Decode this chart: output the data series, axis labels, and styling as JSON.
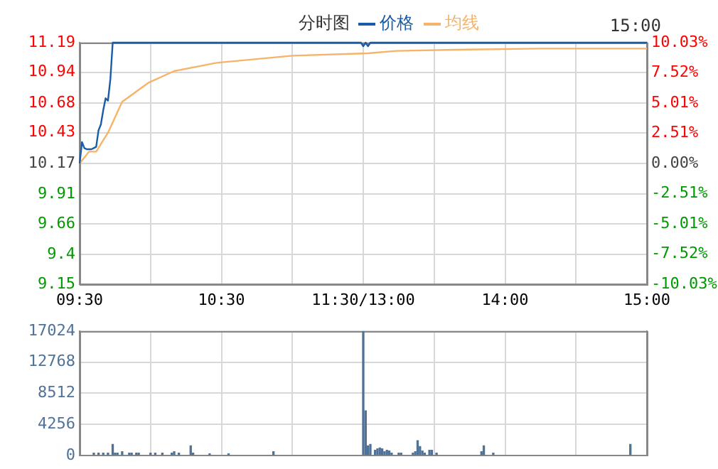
{
  "chart_data": [
    {
      "type": "line",
      "title": "分时图",
      "legend": "top",
      "grid": true,
      "marker": "none",
      "annotations": [
        "15:00"
      ],
      "categories": [
        "09:30",
        null,
        null,
        null,
        null,
        null,
        null,
        null,
        null,
        null,
        null,
        null,
        null,
        null,
        null,
        null,
        null,
        null,
        null,
        null,
        null,
        null,
        null,
        null,
        null,
        null,
        null,
        null,
        null,
        null,
        null,
        null,
        null,
        null,
        null,
        null,
        null,
        null,
        null,
        null,
        null,
        null,
        null,
        null,
        null,
        null,
        null,
        null,
        null,
        null,
        null,
        null,
        null,
        null,
        null,
        null,
        null,
        null,
        null,
        null,
        "10:30",
        null,
        null,
        null,
        null,
        null,
        null,
        null,
        null,
        null,
        null,
        null,
        null,
        null,
        null,
        null,
        null,
        null,
        null,
        null,
        null,
        null,
        null,
        null,
        null,
        null,
        null,
        null,
        null,
        null,
        null,
        null,
        null,
        null,
        null,
        null,
        null,
        null,
        null,
        null,
        null,
        null,
        null,
        null,
        null,
        null,
        null,
        null,
        null,
        null,
        null,
        null,
        null,
        null,
        null,
        null,
        null,
        null,
        null,
        null,
        "11:30/13:00",
        null,
        null,
        null,
        null,
        null,
        null,
        null,
        null,
        null,
        null,
        null,
        null,
        null,
        null,
        null,
        null,
        null,
        null,
        null,
        null,
        null,
        null,
        null,
        null,
        null,
        null,
        null,
        null,
        null,
        null,
        null,
        null,
        null,
        null,
        null,
        null,
        null,
        null,
        null,
        null,
        null,
        null,
        null,
        null,
        null,
        null,
        null,
        null,
        null,
        null,
        null,
        null,
        null,
        null,
        null,
        null,
        null,
        null,
        null,
        "14:00",
        null,
        null,
        null,
        null,
        null,
        null,
        null,
        null,
        null,
        null,
        null,
        null,
        null,
        null,
        null,
        null,
        null,
        null,
        null,
        null,
        null,
        null,
        null,
        null,
        null,
        null,
        null,
        null,
        null,
        null,
        null,
        null,
        null,
        null,
        null,
        null,
        null,
        null,
        null,
        null,
        null,
        null,
        null,
        null,
        null,
        null,
        null,
        null,
        null,
        null,
        null,
        null,
        null,
        null,
        null,
        null,
        null,
        null,
        null,
        "15:00"
      ],
      "ylim": [
        9.15,
        11.19
      ],
      "yticks": [
        9.15,
        9.4,
        9.66,
        9.91,
        10.17,
        10.43,
        10.68,
        10.94,
        11.19
      ],
      "y2lim": [
        -10.03,
        10.03
      ],
      "y2ticks": [
        {
          "value": -10.03,
          "label": "-10.03%"
        },
        {
          "value": -7.52,
          "label": "-7.52%"
        },
        {
          "value": -5.01,
          "label": "-5.01%"
        },
        {
          "value": -2.51,
          "label": "-2.51%"
        },
        {
          "value": 0,
          "label": "0.00%"
        },
        {
          "value": 2.51,
          "label": "2.51%"
        },
        {
          "value": 5.01,
          "label": "5.01%"
        },
        {
          "value": 7.52,
          "label": "7.52%"
        },
        {
          "value": 10.03,
          "label": "10.03%"
        }
      ],
      "series": [
        {
          "name": "价格",
          "color": "#1a5ca8",
          "values": [
            10.17,
            10.35,
            10.3,
            10.29,
            10.29,
            10.29,
            10.3,
            10.31,
            10.45,
            10.5,
            10.62,
            10.72,
            10.7,
            10.88,
            11.19,
            null,
            null,
            null,
            null,
            null,
            null,
            null,
            null,
            null,
            null,
            null,
            null,
            null,
            null,
            null,
            null,
            null,
            null,
            null,
            null,
            null,
            null,
            null,
            null,
            null,
            null,
            null,
            null,
            null,
            null,
            null,
            null,
            null,
            null,
            null,
            null,
            null,
            null,
            null,
            null,
            null,
            null,
            null,
            null,
            null,
            null,
            null,
            null,
            null,
            null,
            null,
            null,
            null,
            null,
            null,
            null,
            null,
            null,
            null,
            null,
            null,
            null,
            null,
            null,
            null,
            null,
            null,
            null,
            null,
            null,
            null,
            null,
            null,
            null,
            null,
            null,
            null,
            null,
            null,
            null,
            null,
            null,
            null,
            null,
            null,
            null,
            null,
            null,
            null,
            null,
            null,
            null,
            null,
            null,
            null,
            null,
            null,
            null,
            null,
            null,
            null,
            null,
            null,
            null,
            11.19,
            11.16,
            11.19,
            11.16,
            11.19,
            null,
            null,
            null,
            null,
            null,
            null,
            null,
            null,
            null,
            null,
            null,
            null,
            null,
            null,
            null,
            null,
            null,
            null,
            null,
            null,
            null,
            null,
            null,
            null,
            null,
            null,
            null,
            null,
            null,
            null,
            null,
            null,
            null,
            null,
            null,
            null,
            null,
            null,
            null,
            null,
            null,
            null,
            null,
            null,
            null,
            null,
            null,
            null,
            null,
            null,
            null,
            null,
            null,
            null,
            null,
            null,
            null,
            null,
            null,
            null,
            null,
            null,
            null,
            null,
            null,
            null,
            null,
            null,
            null,
            null,
            null,
            null,
            null,
            null,
            null,
            null,
            null,
            null,
            null,
            null,
            null,
            null,
            null,
            null,
            null,
            null,
            null,
            null,
            null,
            null,
            null,
            null,
            null,
            null,
            null,
            null,
            null,
            null,
            null,
            null,
            null,
            null,
            null,
            null,
            null,
            null,
            null,
            null,
            null,
            null,
            null,
            null,
            null,
            null,
            null,
            null,
            11.19
          ]
        },
        {
          "name": "均线",
          "color": "#f5b46a",
          "values": [
            10.17,
            null,
            10.22,
            null,
            10.27,
            null,
            null,
            10.27,
            null,
            null,
            null,
            null,
            10.43,
            null,
            null,
            null,
            null,
            null,
            10.69,
            null,
            null,
            null,
            null,
            null,
            null,
            null,
            null,
            null,
            null,
            10.85,
            null,
            null,
            null,
            null,
            null,
            null,
            null,
            null,
            null,
            null,
            10.95,
            null,
            null,
            null,
            null,
            null,
            null,
            null,
            null,
            null,
            null,
            null,
            null,
            null,
            null,
            null,
            null,
            null,
            11.02,
            null,
            null,
            null,
            null,
            null,
            null,
            null,
            null,
            null,
            null,
            null,
            null,
            null,
            null,
            null,
            11.05,
            null,
            null,
            null,
            null,
            null,
            null,
            null,
            null,
            null,
            null,
            null,
            null,
            null,
            null,
            null,
            11.08,
            null,
            null,
            null,
            null,
            null,
            null,
            null,
            null,
            null,
            null,
            null,
            null,
            null,
            null,
            null,
            null,
            null,
            null,
            null,
            null,
            null,
            null,
            null,
            null,
            null,
            null,
            null,
            null,
            null,
            null,
            null,
            11.1,
            null,
            null,
            null,
            null,
            null,
            null,
            null,
            null,
            null,
            null,
            null,
            11.12,
            null,
            null,
            null,
            null,
            null,
            null,
            null,
            null,
            null,
            null,
            null,
            null,
            null,
            null,
            null,
            null,
            null,
            null,
            null,
            null,
            null,
            null,
            null,
            null,
            11.13,
            null,
            null,
            null,
            null,
            null,
            null,
            null,
            null,
            null,
            null,
            null,
            null,
            null,
            null,
            null,
            null,
            null,
            null,
            null,
            null,
            null,
            null,
            null,
            null,
            null,
            null,
            null,
            null,
            null,
            null,
            null,
            null,
            null,
            null,
            null,
            11.14,
            null,
            null,
            null,
            null,
            null,
            null,
            null,
            null,
            null,
            null,
            null,
            null,
            null,
            null,
            null,
            null,
            null,
            null,
            null,
            null,
            null,
            null,
            null,
            null,
            null,
            null,
            null,
            null,
            null,
            null,
            null,
            null,
            null,
            null,
            null,
            null,
            null,
            null,
            null,
            null,
            null,
            null,
            null,
            null,
            11.14
          ]
        }
      ]
    },
    {
      "type": "bar",
      "grid": true,
      "tick_labels": "y",
      "categories": [
        null,
        null,
        null,
        null,
        null,
        null,
        null,
        null,
        null,
        null,
        null,
        null,
        null,
        null,
        null,
        null,
        null,
        null,
        null,
        null,
        null,
        null,
        null,
        null,
        null,
        null,
        null,
        null,
        null,
        null,
        null,
        null,
        null,
        null,
        null,
        null,
        null,
        null,
        null,
        null,
        null,
        null,
        null,
        null,
        null,
        null,
        null,
        null,
        null,
        null,
        null,
        null,
        null,
        null,
        null,
        null,
        null,
        null,
        null,
        null,
        null,
        null,
        null,
        null,
        null,
        null,
        null,
        null,
        null,
        null,
        null,
        null,
        null,
        null,
        null,
        null,
        null,
        null,
        null,
        null,
        null,
        null,
        null,
        null,
        null,
        null,
        null,
        null,
        null,
        null,
        null,
        null,
        null,
        null,
        null,
        null,
        null,
        null,
        null,
        null,
        null,
        null,
        null,
        null,
        null,
        null,
        null,
        null,
        null,
        null,
        null,
        null,
        null,
        null,
        null,
        null,
        null,
        null,
        null,
        null,
        null,
        null,
        null,
        null,
        null,
        null,
        null,
        null,
        null,
        null,
        null,
        null,
        null,
        null,
        null,
        null,
        null,
        null,
        null,
        null,
        null,
        null,
        null,
        null,
        null,
        null,
        null,
        null,
        null,
        null,
        null,
        null,
        null,
        null,
        null,
        null,
        null,
        null,
        null,
        null,
        null,
        null,
        null,
        null,
        null,
        null,
        null,
        null,
        null,
        null,
        null,
        null,
        null,
        null,
        null,
        null,
        null,
        null,
        null,
        null,
        null,
        null,
        null,
        null,
        null,
        null,
        null,
        null,
        null,
        null,
        null,
        null,
        null,
        null,
        null,
        null,
        null,
        null,
        null,
        null,
        null,
        null,
        null,
        null,
        null,
        null,
        null,
        null,
        null,
        null,
        null,
        null,
        null,
        null,
        null,
        null,
        null,
        null,
        null,
        null,
        null,
        null,
        null,
        null,
        null,
        null,
        null,
        null,
        null,
        null,
        null,
        null,
        null,
        null,
        null,
        null,
        null,
        null,
        null,
        null,
        null
      ],
      "ylim": [
        0,
        17024
      ],
      "yticks": [
        0,
        4256,
        8512,
        12768,
        17024
      ],
      "series": [
        {
          "color": "#4f7398",
          "values": [
            null,
            null,
            null,
            null,
            null,
            null,
            300,
            null,
            300,
            null,
            300,
            null,
            300,
            null,
            1500,
            300,
            300,
            null,
            500,
            null,
            null,
            300,
            300,
            null,
            300,
            300,
            null,
            null,
            null,
            null,
            300,
            null,
            300,
            null,
            null,
            300,
            null,
            null,
            null,
            300,
            500,
            null,
            300,
            null,
            null,
            null,
            null,
            1300,
            300,
            null,
            null,
            null,
            null,
            null,
            null,
            200,
            null,
            null,
            null,
            null,
            null,
            null,
            null,
            200,
            null,
            null,
            null,
            null,
            null,
            null,
            null,
            null,
            null,
            null,
            null,
            null,
            null,
            null,
            null,
            null,
            null,
            null,
            500,
            null,
            null,
            null,
            null,
            null,
            null,
            null,
            null,
            null,
            null,
            null,
            null,
            null,
            null,
            null,
            null,
            null,
            null,
            null,
            null,
            null,
            null,
            null,
            null,
            null,
            null,
            null,
            null,
            null,
            null,
            null,
            null,
            null,
            null,
            null,
            null,
            null,
            17024,
            6100,
            1300,
            1500,
            null,
            700,
            900,
            1000,
            900,
            500,
            700,
            600,
            300,
            null,
            null,
            300,
            300,
            null,
            null,
            null,
            null,
            300,
            500,
            2000,
            1200,
            600,
            300,
            null,
            700,
            700,
            null,
            300,
            null,
            null,
            null,
            null,
            null,
            null,
            null,
            null,
            null,
            null,
            null,
            null,
            null,
            null,
            null,
            null,
            null,
            null,
            500,
            1300,
            null,
            null,
            null,
            300,
            null,
            null,
            null,
            null,
            null,
            null,
            null,
            null,
            null,
            null,
            null,
            null,
            null,
            null,
            null,
            null,
            null,
            null,
            null,
            null,
            null,
            null,
            null,
            null,
            null,
            null,
            null,
            null,
            null,
            null,
            null,
            null,
            null,
            null,
            null,
            null,
            null,
            null,
            null,
            null,
            null,
            null,
            null,
            null,
            null,
            null,
            null,
            null,
            null,
            null,
            null,
            null,
            null,
            null,
            null,
            null,
            null,
            1500,
            null,
            null,
            null,
            null,
            null,
            null,
            null
          ]
        }
      ]
    }
  ]
}
